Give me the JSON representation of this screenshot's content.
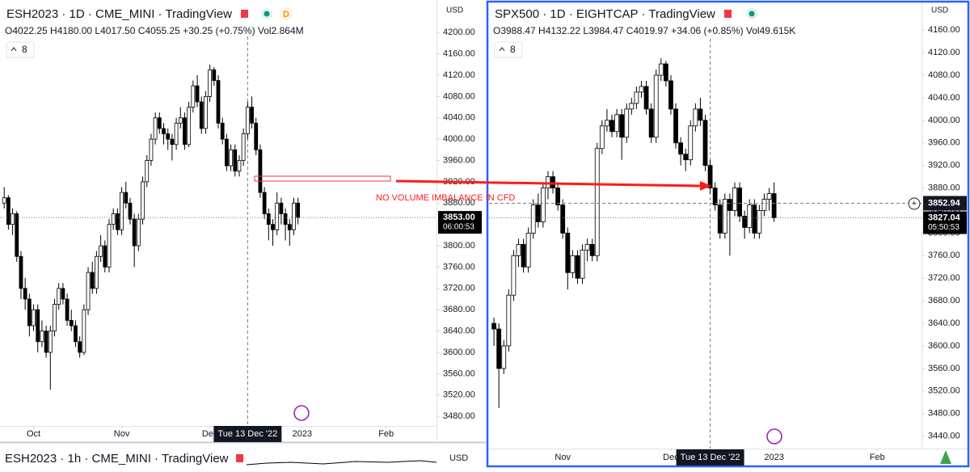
{
  "chart_data": [
    {
      "type": "candlestick",
      "title": "ESH2023 · 1D · CME_MINI · TradingView",
      "subtitle": "O4022.25 H4180.00 L4017.50 C4055.25 +30.25 (+0.75%) Vol2.864M",
      "badge": "D",
      "currency": "USD",
      "button": 8,
      "up_color": "#ffffff",
      "down_color": "#000000",
      "xlim": [
        -1,
        103
      ],
      "ylim": [
        3462,
        4261
      ],
      "xticks": [
        {
          "value": 7,
          "label": "Oct"
        },
        {
          "value": 28,
          "label": "Nov"
        },
        {
          "value": 49,
          "label": "Dec"
        },
        {
          "value": 71,
          "label": "2023"
        },
        {
          "value": 91,
          "label": "Feb"
        }
      ],
      "yticks": [
        {
          "value": 4200,
          "label": "4200.00"
        },
        {
          "value": 4160,
          "label": "4160.00"
        },
        {
          "value": 4120,
          "label": "4120.00"
        },
        {
          "value": 4080,
          "label": "4080.00"
        },
        {
          "value": 4040,
          "label": "4040.00"
        },
        {
          "value": 4000,
          "label": "4000.00"
        },
        {
          "value": 3960,
          "label": "3960.00"
        },
        {
          "value": 3920,
          "label": "3920.00"
        },
        {
          "value": 3880,
          "label": "3880.00"
        },
        {
          "value": 3840,
          "label": "3840.00"
        },
        {
          "value": 3800,
          "label": "3800.00"
        },
        {
          "value": 3760,
          "label": "3760.00"
        },
        {
          "value": 3720,
          "label": "3720.00"
        },
        {
          "value": 3680,
          "label": "3680.00"
        },
        {
          "value": 3640,
          "label": "3640.00"
        },
        {
          "value": 3600,
          "label": "3600.00"
        },
        {
          "value": 3560,
          "label": "3560.00"
        },
        {
          "value": 3520,
          "label": "3520.00"
        },
        {
          "value": 3480,
          "label": "3480.00"
        }
      ],
      "ohlc": [
        [
          3880,
          3910,
          3870,
          3890
        ],
        [
          3890,
          3895,
          3830,
          3840
        ],
        [
          3840,
          3870,
          3820,
          3860
        ],
        [
          3860,
          3865,
          3770,
          3780
        ],
        [
          3780,
          3790,
          3700,
          3720
        ],
        [
          3720,
          3740,
          3680,
          3700
        ],
        [
          3700,
          3710,
          3630,
          3650
        ],
        [
          3650,
          3690,
          3640,
          3680
        ],
        [
          3680,
          3690,
          3600,
          3620
        ],
        [
          3620,
          3660,
          3610,
          3640
        ],
        [
          3640,
          3650,
          3590,
          3600
        ],
        [
          3600,
          3650,
          3530,
          3640
        ],
        [
          3640,
          3700,
          3630,
          3690
        ],
        [
          3690,
          3730,
          3680,
          3720
        ],
        [
          3720,
          3730,
          3690,
          3700
        ],
        [
          3700,
          3710,
          3650,
          3660
        ],
        [
          3660,
          3680,
          3640,
          3650
        ],
        [
          3650,
          3660,
          3610,
          3620
        ],
        [
          3620,
          3630,
          3590,
          3600
        ],
        [
          3600,
          3690,
          3595,
          3680
        ],
        [
          3680,
          3760,
          3670,
          3750
        ],
        [
          3750,
          3770,
          3710,
          3720
        ],
        [
          3720,
          3790,
          3710,
          3780
        ],
        [
          3780,
          3820,
          3770,
          3800
        ],
        [
          3800,
          3810,
          3750,
          3760
        ],
        [
          3760,
          3850,
          3750,
          3840
        ],
        [
          3840,
          3870,
          3830,
          3860
        ],
        [
          3860,
          3870,
          3820,
          3830
        ],
        [
          3830,
          3910,
          3820,
          3900
        ],
        [
          3900,
          3920,
          3870,
          3880
        ],
        [
          3880,
          3890,
          3840,
          3850
        ],
        [
          3850,
          3860,
          3760,
          3800
        ],
        [
          3800,
          3860,
          3790,
          3850
        ],
        [
          3850,
          3930,
          3840,
          3920
        ],
        [
          3920,
          3970,
          3910,
          3960
        ],
        [
          3960,
          4010,
          3950,
          4000
        ],
        [
          4000,
          4050,
          3990,
          4040
        ],
        [
          4040,
          4050,
          4010,
          4020
        ],
        [
          4020,
          4030,
          3990,
          4010
        ],
        [
          4010,
          4020,
          3980,
          4000
        ],
        [
          4000,
          4010,
          3960,
          3990
        ],
        [
          3990,
          4040,
          3980,
          4030
        ],
        [
          4030,
          4060,
          4020,
          4040
        ],
        [
          4040,
          4050,
          3980,
          3990
        ],
        [
          3990,
          4070,
          3985,
          4060
        ],
        [
          4060,
          4110,
          4050,
          4100
        ],
        [
          4100,
          4120,
          4060,
          4070
        ],
        [
          4070,
          4080,
          4010,
          4020
        ],
        [
          4020,
          4090,
          4010,
          4080
        ],
        [
          4080,
          4140,
          4070,
          4130
        ],
        [
          4130,
          4135,
          4100,
          4110
        ],
        [
          4110,
          4120,
          4020,
          4030
        ],
        [
          4030,
          4040,
          3990,
          4000
        ],
        [
          4000,
          4010,
          3940,
          3950
        ],
        [
          3950,
          3990,
          3940,
          3980
        ],
        [
          3980,
          3990,
          3930,
          3940
        ],
        [
          3940,
          3970,
          3930,
          3960
        ],
        [
          3960,
          4020,
          3950,
          4010
        ],
        [
          4010,
          4070,
          4000,
          4060
        ],
        [
          4060,
          4080,
          4020,
          4030
        ],
        [
          4030,
          4040,
          3970,
          3980
        ],
        [
          3980,
          3990,
          3890,
          3900
        ],
        [
          3900,
          3910,
          3850,
          3860
        ],
        [
          3860,
          3870,
          3810,
          3840
        ],
        [
          3840,
          3850,
          3800,
          3830
        ],
        [
          3830,
          3900,
          3820,
          3880
        ],
        [
          3880,
          3890,
          3840,
          3860
        ],
        [
          3860,
          3870,
          3810,
          3840
        ],
        [
          3840,
          3850,
          3800,
          3830
        ],
        [
          3830,
          3890,
          3820,
          3880
        ],
        [
          3880,
          3890,
          3840,
          3853
        ]
      ],
      "last_price": {
        "value": 3853,
        "label": "3853.00"
      },
      "countdown": "06:00:53",
      "crosshair": {
        "x": 58,
        "label": "Tue 13 Dec '22"
      },
      "annotation": "NO VOLUME IMBALANCE IN CFD"
    },
    {
      "type": "candlestick",
      "title": "SPX500 · 1D · EIGHTCAP · TradingView",
      "subtitle": "O3988.47 H4132.22 L3984.47 C4019.97 +34.06 (+0.85%) Vol49.615K",
      "currency": "USD",
      "button": 8,
      "up_color": "#ffffff",
      "down_color": "#000000",
      "xlim": [
        -1,
        87
      ],
      "ylim": [
        3418,
        4209
      ],
      "xticks": [
        {
          "value": 14,
          "label": "Nov"
        },
        {
          "value": 36,
          "label": "Dec"
        },
        {
          "value": 57,
          "label": "2023"
        },
        {
          "value": 78,
          "label": "Feb"
        }
      ],
      "yticks": [
        {
          "value": 4160,
          "label": "4160.00"
        },
        {
          "value": 4120,
          "label": "4120.00"
        },
        {
          "value": 4080,
          "label": "4080.00"
        },
        {
          "value": 4040,
          "label": "4040.00"
        },
        {
          "value": 4000,
          "label": "4000.00"
        },
        {
          "value": 3960,
          "label": "3960.00"
        },
        {
          "value": 3920,
          "label": "3920.00"
        },
        {
          "value": 3880,
          "label": "3880.00"
        },
        {
          "value": 3840,
          "label": "3840.00"
        },
        {
          "value": 3800,
          "label": "3800.00"
        },
        {
          "value": 3760,
          "label": "3760.00"
        },
        {
          "value": 3720,
          "label": "3720.00"
        },
        {
          "value": 3680,
          "label": "3680.00"
        },
        {
          "value": 3640,
          "label": "3640.00"
        },
        {
          "value": 3600,
          "label": "3600.00"
        },
        {
          "value": 3560,
          "label": "3560.00"
        },
        {
          "value": 3520,
          "label": "3520.00"
        },
        {
          "value": 3480,
          "label": "3480.00"
        },
        {
          "value": 3440,
          "label": "3440.00"
        }
      ],
      "ohlc": [
        [
          3640,
          3650,
          3600,
          3630
        ],
        [
          3630,
          3640,
          3490,
          3560
        ],
        [
          3560,
          3610,
          3550,
          3600
        ],
        [
          3600,
          3700,
          3590,
          3690
        ],
        [
          3690,
          3770,
          3680,
          3760
        ],
        [
          3760,
          3790,
          3740,
          3780
        ],
        [
          3780,
          3790,
          3730,
          3740
        ],
        [
          3740,
          3810,
          3730,
          3800
        ],
        [
          3800,
          3860,
          3790,
          3850
        ],
        [
          3850,
          3870,
          3810,
          3820
        ],
        [
          3820,
          3890,
          3810,
          3880
        ],
        [
          3880,
          3910,
          3860,
          3900
        ],
        [
          3900,
          3910,
          3870,
          3880
        ],
        [
          3880,
          3890,
          3840,
          3850
        ],
        [
          3850,
          3860,
          3790,
          3800
        ],
        [
          3800,
          3810,
          3700,
          3730
        ],
        [
          3730,
          3770,
          3720,
          3760
        ],
        [
          3760,
          3770,
          3710,
          3720
        ],
        [
          3720,
          3780,
          3710,
          3770
        ],
        [
          3770,
          3790,
          3750,
          3780
        ],
        [
          3780,
          3790,
          3750,
          3760
        ],
        [
          3760,
          3960,
          3750,
          3950
        ],
        [
          3950,
          4000,
          3940,
          3990
        ],
        [
          3990,
          4020,
          3980,
          4000
        ],
        [
          4000,
          4010,
          3970,
          3980
        ],
        [
          3980,
          4020,
          3970,
          4010
        ],
        [
          4010,
          4020,
          3930,
          3970
        ],
        [
          3970,
          4030,
          3960,
          4020
        ],
        [
          4020,
          4040,
          4010,
          4030
        ],
        [
          4030,
          4060,
          4020,
          4050
        ],
        [
          4050,
          4070,
          4040,
          4060
        ],
        [
          4060,
          4070,
          4010,
          4020
        ],
        [
          4020,
          4030,
          3960,
          3970
        ],
        [
          3970,
          4090,
          3960,
          4080
        ],
        [
          4080,
          4110,
          4070,
          4100
        ],
        [
          4100,
          4105,
          4060,
          4070
        ],
        [
          4070,
          4080,
          4010,
          4020
        ],
        [
          4020,
          4030,
          3950,
          3960
        ],
        [
          3960,
          3970,
          3920,
          3940
        ],
        [
          3940,
          3950,
          3910,
          3930
        ],
        [
          3930,
          4000,
          3920,
          3990
        ],
        [
          3990,
          4030,
          3980,
          4020
        ],
        [
          4020,
          4040,
          3990,
          4000
        ],
        [
          4000,
          4010,
          3910,
          3920
        ],
        [
          3920,
          3930,
          3870,
          3880
        ],
        [
          3880,
          3890,
          3840,
          3850
        ],
        [
          3850,
          3860,
          3790,
          3800
        ],
        [
          3800,
          3870,
          3790,
          3860
        ],
        [
          3860,
          3870,
          3760,
          3840
        ],
        [
          3840,
          3890,
          3830,
          3880
        ],
        [
          3880,
          3890,
          3820,
          3830
        ],
        [
          3830,
          3840,
          3790,
          3810
        ],
        [
          3810,
          3860,
          3800,
          3850
        ],
        [
          3850,
          3860,
          3790,
          3800
        ],
        [
          3800,
          3850,
          3790,
          3840
        ],
        [
          3840,
          3870,
          3830,
          3860
        ],
        [
          3860,
          3880,
          3840,
          3870
        ],
        [
          3870,
          3890,
          3820,
          3827.04
        ]
      ],
      "last_price": 3827.04,
      "countdown": "05:50:53",
      "crosshair_price": 3852.94,
      "crosshair": {
        "x": 44,
        "label": "Tue 13 Dec '22"
      }
    }
  ],
  "bottom_pane": {
    "title": "ESH2023 · 1h · CME_MINI · TradingView",
    "currency": "USD"
  }
}
